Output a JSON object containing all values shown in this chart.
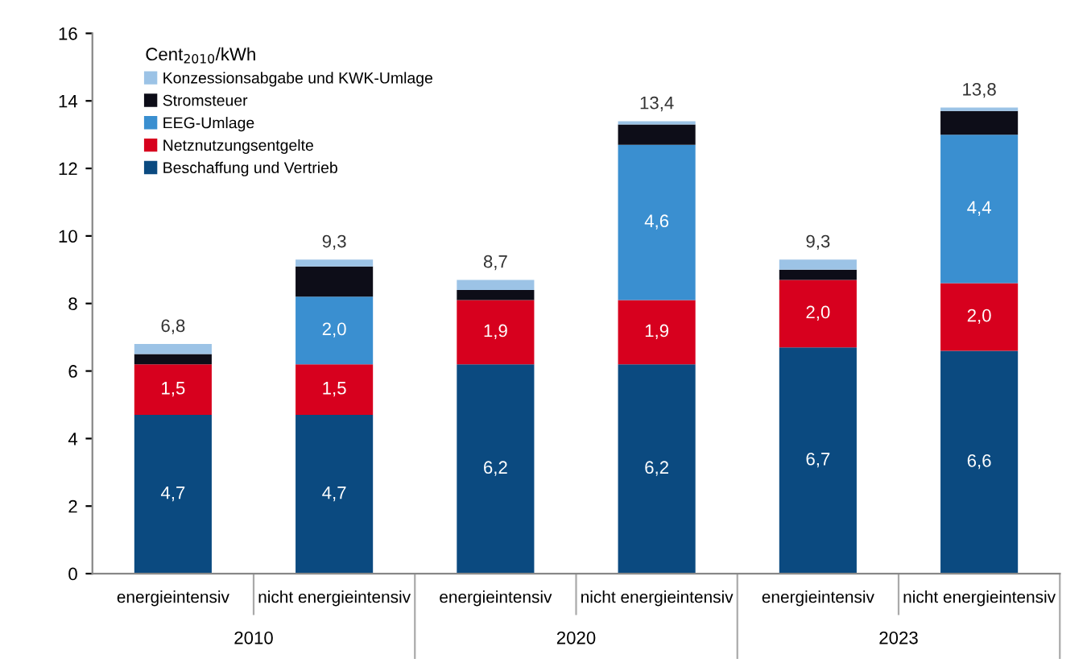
{
  "chart_data": {
    "type": "bar",
    "stacked": true,
    "legend_title": "Cent$_{2010}$/kWh",
    "legend": "top left",
    "grid": false,
    "categories": [
      "energieintensiv",
      "nicht energieintensiv",
      "energieintensiv",
      "nicht energieintensiv",
      "energieintensiv",
      "nicht energieintensiv"
    ],
    "series": [
      {
        "name": "Beschaffung und Vertrieb",
        "color": "#0b4a80",
        "values": [
          4.7,
          4.7,
          6.2,
          6.2,
          6.7,
          6.6
        ],
        "value_labels": [
          "4,7",
          "4,7",
          "6,2",
          "6,2",
          "6,7",
          "6,6"
        ]
      },
      {
        "name": "Netznutzungsentgelte",
        "color": "#d7001e",
        "values": [
          1.5,
          1.5,
          1.9,
          1.9,
          2.0,
          2.0
        ],
        "value_labels": [
          "1,5",
          "1,5",
          "1,9",
          "1,9",
          "2,0",
          "2,0"
        ]
      },
      {
        "name": "EEG-Umlage",
        "color": "#3a8fd0",
        "values": [
          0,
          2.0,
          0,
          4.6,
          0,
          4.4
        ],
        "value_labels": [
          null,
          "2,0",
          null,
          "4,6",
          null,
          "4,4"
        ]
      },
      {
        "name": "Stromsteuer",
        "color": "#0d0d18",
        "values": [
          0.3,
          0.9,
          0.3,
          0.6,
          0.3,
          0.7
        ]
      },
      {
        "name": "Konzessionsabgabe und KWK-Umlage",
        "color": "#9cc3e6",
        "values": [
          0.3,
          0.2,
          0.3,
          0.1,
          0.3,
          0.1
        ]
      }
    ],
    "totals": [
      "6,8",
      "9,3",
      "8,7",
      "13,4",
      "9,3",
      "13,8"
    ],
    "ylim": [
      0,
      16
    ],
    "yticks": [
      0,
      2,
      4,
      6,
      8,
      10,
      12,
      14,
      16
    ],
    "annotations": [
      "2010",
      "2020",
      "2023"
    ]
  }
}
